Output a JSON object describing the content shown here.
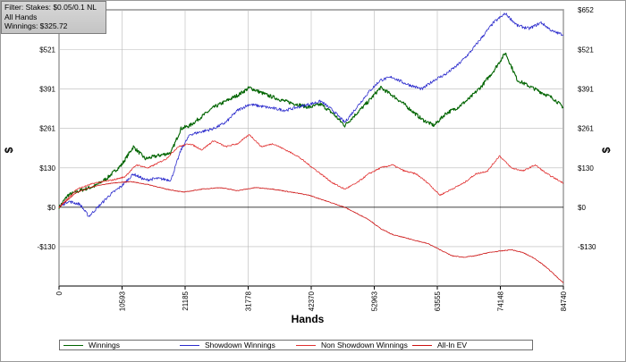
{
  "filter": {
    "line1": "Filter: Stakes: $0.05/0.1 NL",
    "line2": "All Hands",
    "line3": "Winnings: $325.72"
  },
  "colors": {
    "winnings": "#006400",
    "showdown": "#2b2bcc",
    "non_showdown": "#e03030",
    "allin_ev": "#cc1010",
    "grid": "#b8b8b8",
    "zero_line": "#000000"
  },
  "chart_data": {
    "type": "line",
    "xlabel": "Hands",
    "ylabel": "$",
    "xlim": [
      0,
      84740
    ],
    "ylim": [
      -260,
      652
    ],
    "x_ticks": [
      0,
      10593,
      21185,
      31778,
      42370,
      52963,
      63555,
      74148,
      84740
    ],
    "x_tick_labels": [
      "0",
      "10593",
      "21185",
      "31778",
      "42370",
      "52963",
      "63555",
      "74148",
      "84740"
    ],
    "y_ticks": [
      -130,
      0,
      130,
      261,
      391,
      521,
      652
    ],
    "y_tick_labels": [
      "-$130",
      "$0",
      "$130",
      "$261",
      "$391",
      "$521",
      "$652"
    ],
    "grid": true,
    "legend_position": "bottom",
    "series": [
      {
        "name": "Winnings",
        "color_key": "winnings",
        "x": [
          0,
          1500,
          3500,
          6000,
          8000,
          10500,
          12500,
          14500,
          16500,
          18800,
          20500,
          22000,
          24000,
          26000,
          28000,
          30000,
          32000,
          35000,
          38000,
          40000,
          42000,
          44000,
          46000,
          48000,
          50000,
          52000,
          54000,
          56000,
          58000,
          61000,
          63000,
          65000,
          67000,
          69000,
          71000,
          73000,
          75000,
          77000,
          79000,
          81000,
          83000,
          84740
        ],
        "values": [
          0,
          40,
          55,
          70,
          95,
          140,
          200,
          160,
          170,
          180,
          260,
          270,
          300,
          330,
          350,
          370,
          395,
          370,
          350,
          340,
          330,
          340,
          310,
          270,
          310,
          350,
          395,
          370,
          340,
          290,
          270,
          310,
          330,
          360,
          400,
          450,
          510,
          420,
          400,
          380,
          360,
          330
        ]
      },
      {
        "name": "Showdown Winnings",
        "color_key": "showdown",
        "x": [
          0,
          1500,
          3500,
          5000,
          6500,
          8500,
          10500,
          12500,
          14500,
          16500,
          18800,
          20500,
          22000,
          24000,
          26000,
          28000,
          30000,
          32000,
          35000,
          38000,
          40000,
          42000,
          44000,
          46000,
          48000,
          50000,
          52000,
          54000,
          56000,
          58000,
          61000,
          63000,
          65000,
          67000,
          69000,
          71000,
          73000,
          75000,
          77000,
          79000,
          81000,
          83000,
          84740
        ],
        "values": [
          0,
          20,
          10,
          -30,
          0,
          40,
          70,
          110,
          90,
          95,
          90,
          190,
          240,
          250,
          260,
          280,
          320,
          340,
          330,
          320,
          330,
          340,
          350,
          320,
          280,
          330,
          380,
          420,
          430,
          410,
          390,
          420,
          440,
          470,
          510,
          560,
          610,
          640,
          600,
          590,
          610,
          580,
          570
        ]
      },
      {
        "name": "Non Showdown Winnings",
        "color_key": "non_showdown",
        "x": [
          0,
          3000,
          6000,
          9000,
          11000,
          13000,
          15000,
          18000,
          20000,
          22000,
          24000,
          26000,
          28000,
          30000,
          32000,
          34000,
          36000,
          38000,
          40000,
          42000,
          44000,
          46000,
          48000,
          50000,
          52000,
          54000,
          56000,
          58000,
          60000,
          62000,
          64000,
          66000,
          68000,
          70000,
          72000,
          74000,
          76000,
          78000,
          80000,
          82000,
          84740
        ],
        "values": [
          0,
          60,
          80,
          90,
          100,
          140,
          130,
          160,
          200,
          210,
          190,
          220,
          200,
          210,
          240,
          200,
          210,
          190,
          170,
          140,
          110,
          80,
          60,
          80,
          110,
          130,
          140,
          120,
          110,
          80,
          40,
          60,
          80,
          110,
          120,
          170,
          130,
          120,
          140,
          110,
          80
        ]
      },
      {
        "name": "All-In EV",
        "color_key": "allin_ev",
        "x": [
          0,
          3000,
          6000,
          9000,
          12000,
          15000,
          18000,
          21000,
          24000,
          27000,
          30000,
          33000,
          36000,
          39000,
          42000,
          45000,
          48000,
          50000,
          52000,
          54000,
          56000,
          58000,
          60000,
          62000,
          64000,
          66000,
          68000,
          70000,
          72000,
          74000,
          76000,
          78000,
          80000,
          82000,
          84740
        ],
        "values": [
          0,
          50,
          70,
          80,
          85,
          75,
          60,
          50,
          60,
          65,
          55,
          65,
          60,
          50,
          40,
          20,
          0,
          -20,
          -40,
          -70,
          -90,
          -100,
          -110,
          -120,
          -140,
          -160,
          -165,
          -160,
          -150,
          -145,
          -140,
          -150,
          -170,
          -200,
          -250
        ]
      }
    ]
  },
  "legend": {
    "items": [
      {
        "label": "Winnings",
        "color_key": "winnings"
      },
      {
        "label": "Showdown Winnings",
        "color_key": "showdown"
      },
      {
        "label": "Non Showdown Winnings",
        "color_key": "non_showdown"
      },
      {
        "label": "All-In EV",
        "color_key": "allin_ev"
      }
    ]
  }
}
